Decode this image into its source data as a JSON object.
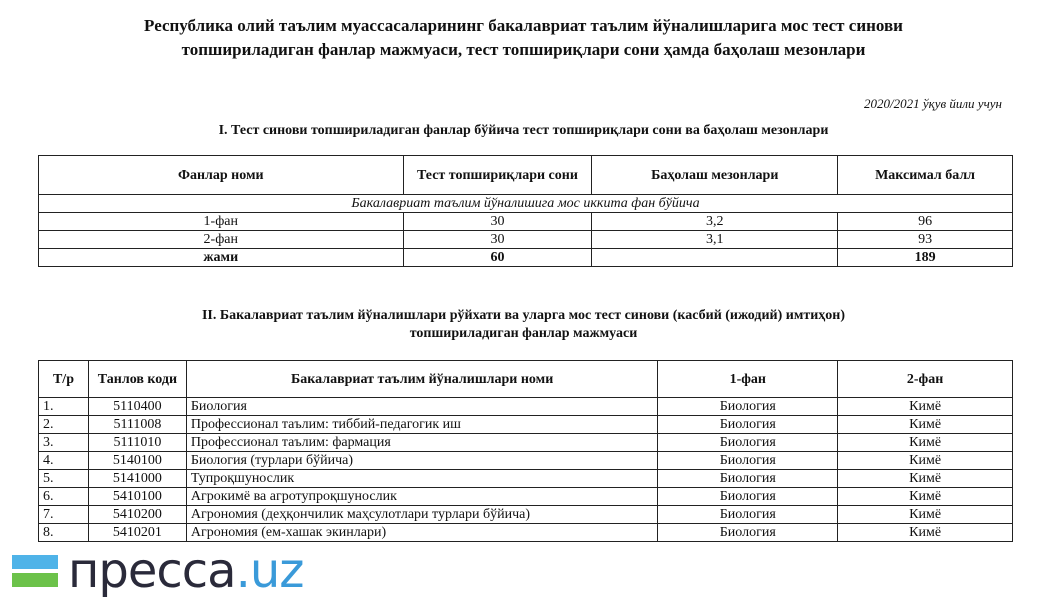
{
  "title_lines": [
    "Республика олий таълим муассасаларининг бакалавриат таълим йўналишларига мос тест синови",
    "топшириладиган фанлар мажмуаси, тест топшириқлари сони ҳамда баҳолаш мезонлари"
  ],
  "year_note": "2020/2021 ўқув йили учун",
  "section1": {
    "heading": "I. Тест синови топшириладиган фанлар бўйича тест топшириқлари сони ва баҳолаш мезонлари",
    "headers": [
      "Фанлар номи",
      "Тест топшириқлари сони",
      "Баҳолаш мезонлари",
      "Максимал балл"
    ],
    "subheader": "Бакалавриат таълим йўналишига мос иккита фан бўйича",
    "rows": [
      [
        "1-фан",
        "30",
        "3,2",
        "96"
      ],
      [
        "2-фан",
        "30",
        "3,1",
        "93"
      ]
    ],
    "total": [
      "жами",
      "60",
      "",
      "189"
    ]
  },
  "section2": {
    "heading_lines": [
      "II. Бакалавриат таълим йўналишлари рўйхати ва уларга мос тест синови (касбий (ижодий) имтиҳон)",
      "топшириладиган фанлар мажмуаси"
    ],
    "headers": [
      "Т/р",
      "Танлов коди",
      "Бакалавриат таълим йўналишлари номи",
      "1-фан",
      "2-фан"
    ],
    "rows": [
      [
        "1.",
        "5110400",
        "Биология",
        "Биология",
        "Кимё"
      ],
      [
        "2.",
        "5111008",
        "Профессионал таълим: тиббий-педагогик иш",
        "Биология",
        "Кимё"
      ],
      [
        "3.",
        "5111010",
        "Профессионал таълим: фармация",
        "Биология",
        "Кимё"
      ],
      [
        "4.",
        "5140100",
        "Биология (турлари бўйича)",
        "Биология",
        "Кимё"
      ],
      [
        "5.",
        "5141000",
        "Тупроқшунослик",
        "Биология",
        "Кимё"
      ],
      [
        "6.",
        "5410100",
        "Агрокимё ва агротупроқшунослик",
        "Биология",
        "Кимё"
      ],
      [
        "7.",
        "5410200",
        "Агрономия (деҳқончилик маҳсулотлари турлари бўйича)",
        "Биология",
        "Кимё"
      ],
      [
        "8.",
        "5410201",
        "Агрономия (ем-хашак экинлари)",
        "Биология",
        "Кимё"
      ]
    ]
  },
  "watermark": {
    "text": "пресса",
    "suffix": ".uz",
    "colors": {
      "text": "#2a2a3a",
      "suffix": "#3a9ad9",
      "bar_top": "#4fb3e8",
      "bar_bottom": "#6cc24a"
    }
  }
}
